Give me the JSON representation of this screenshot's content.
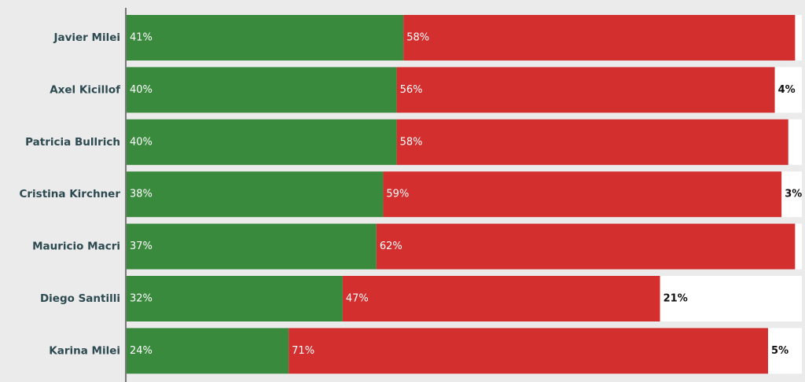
{
  "chart_data": {
    "type": "stacked-bar",
    "categories": [
      "Javier Milei",
      "Axel Kicillof",
      "Patricia Bullrich",
      "Cristina Kirchner",
      "Mauricio Macri",
      "Diego Santilli",
      "Karina Milei"
    ],
    "xlim": [
      0,
      100
    ],
    "series": [
      {
        "color": "#3a8a3e",
        "label_color": "#ffffff",
        "values": [
          41,
          40,
          40,
          38,
          37,
          32,
          24
        ],
        "value_labels": [
          "41%",
          "40%",
          "40%",
          "38%",
          "37%",
          "32%",
          "24%"
        ]
      },
      {
        "color": "#d32f2f",
        "label_color": "#ffffff",
        "values": [
          58,
          56,
          58,
          59,
          62,
          47,
          71
        ],
        "value_labels": [
          "58%",
          "56%",
          "58%",
          "59%",
          "62%",
          "47%",
          "71%"
        ]
      },
      {
        "color": "#ffffff",
        "label_color": "#111111",
        "values": [
          1,
          4,
          2,
          3,
          1,
          21,
          5
        ],
        "value_labels": [
          null,
          "4%",
          null,
          "3%",
          null,
          "21%",
          "5%"
        ]
      }
    ]
  }
}
